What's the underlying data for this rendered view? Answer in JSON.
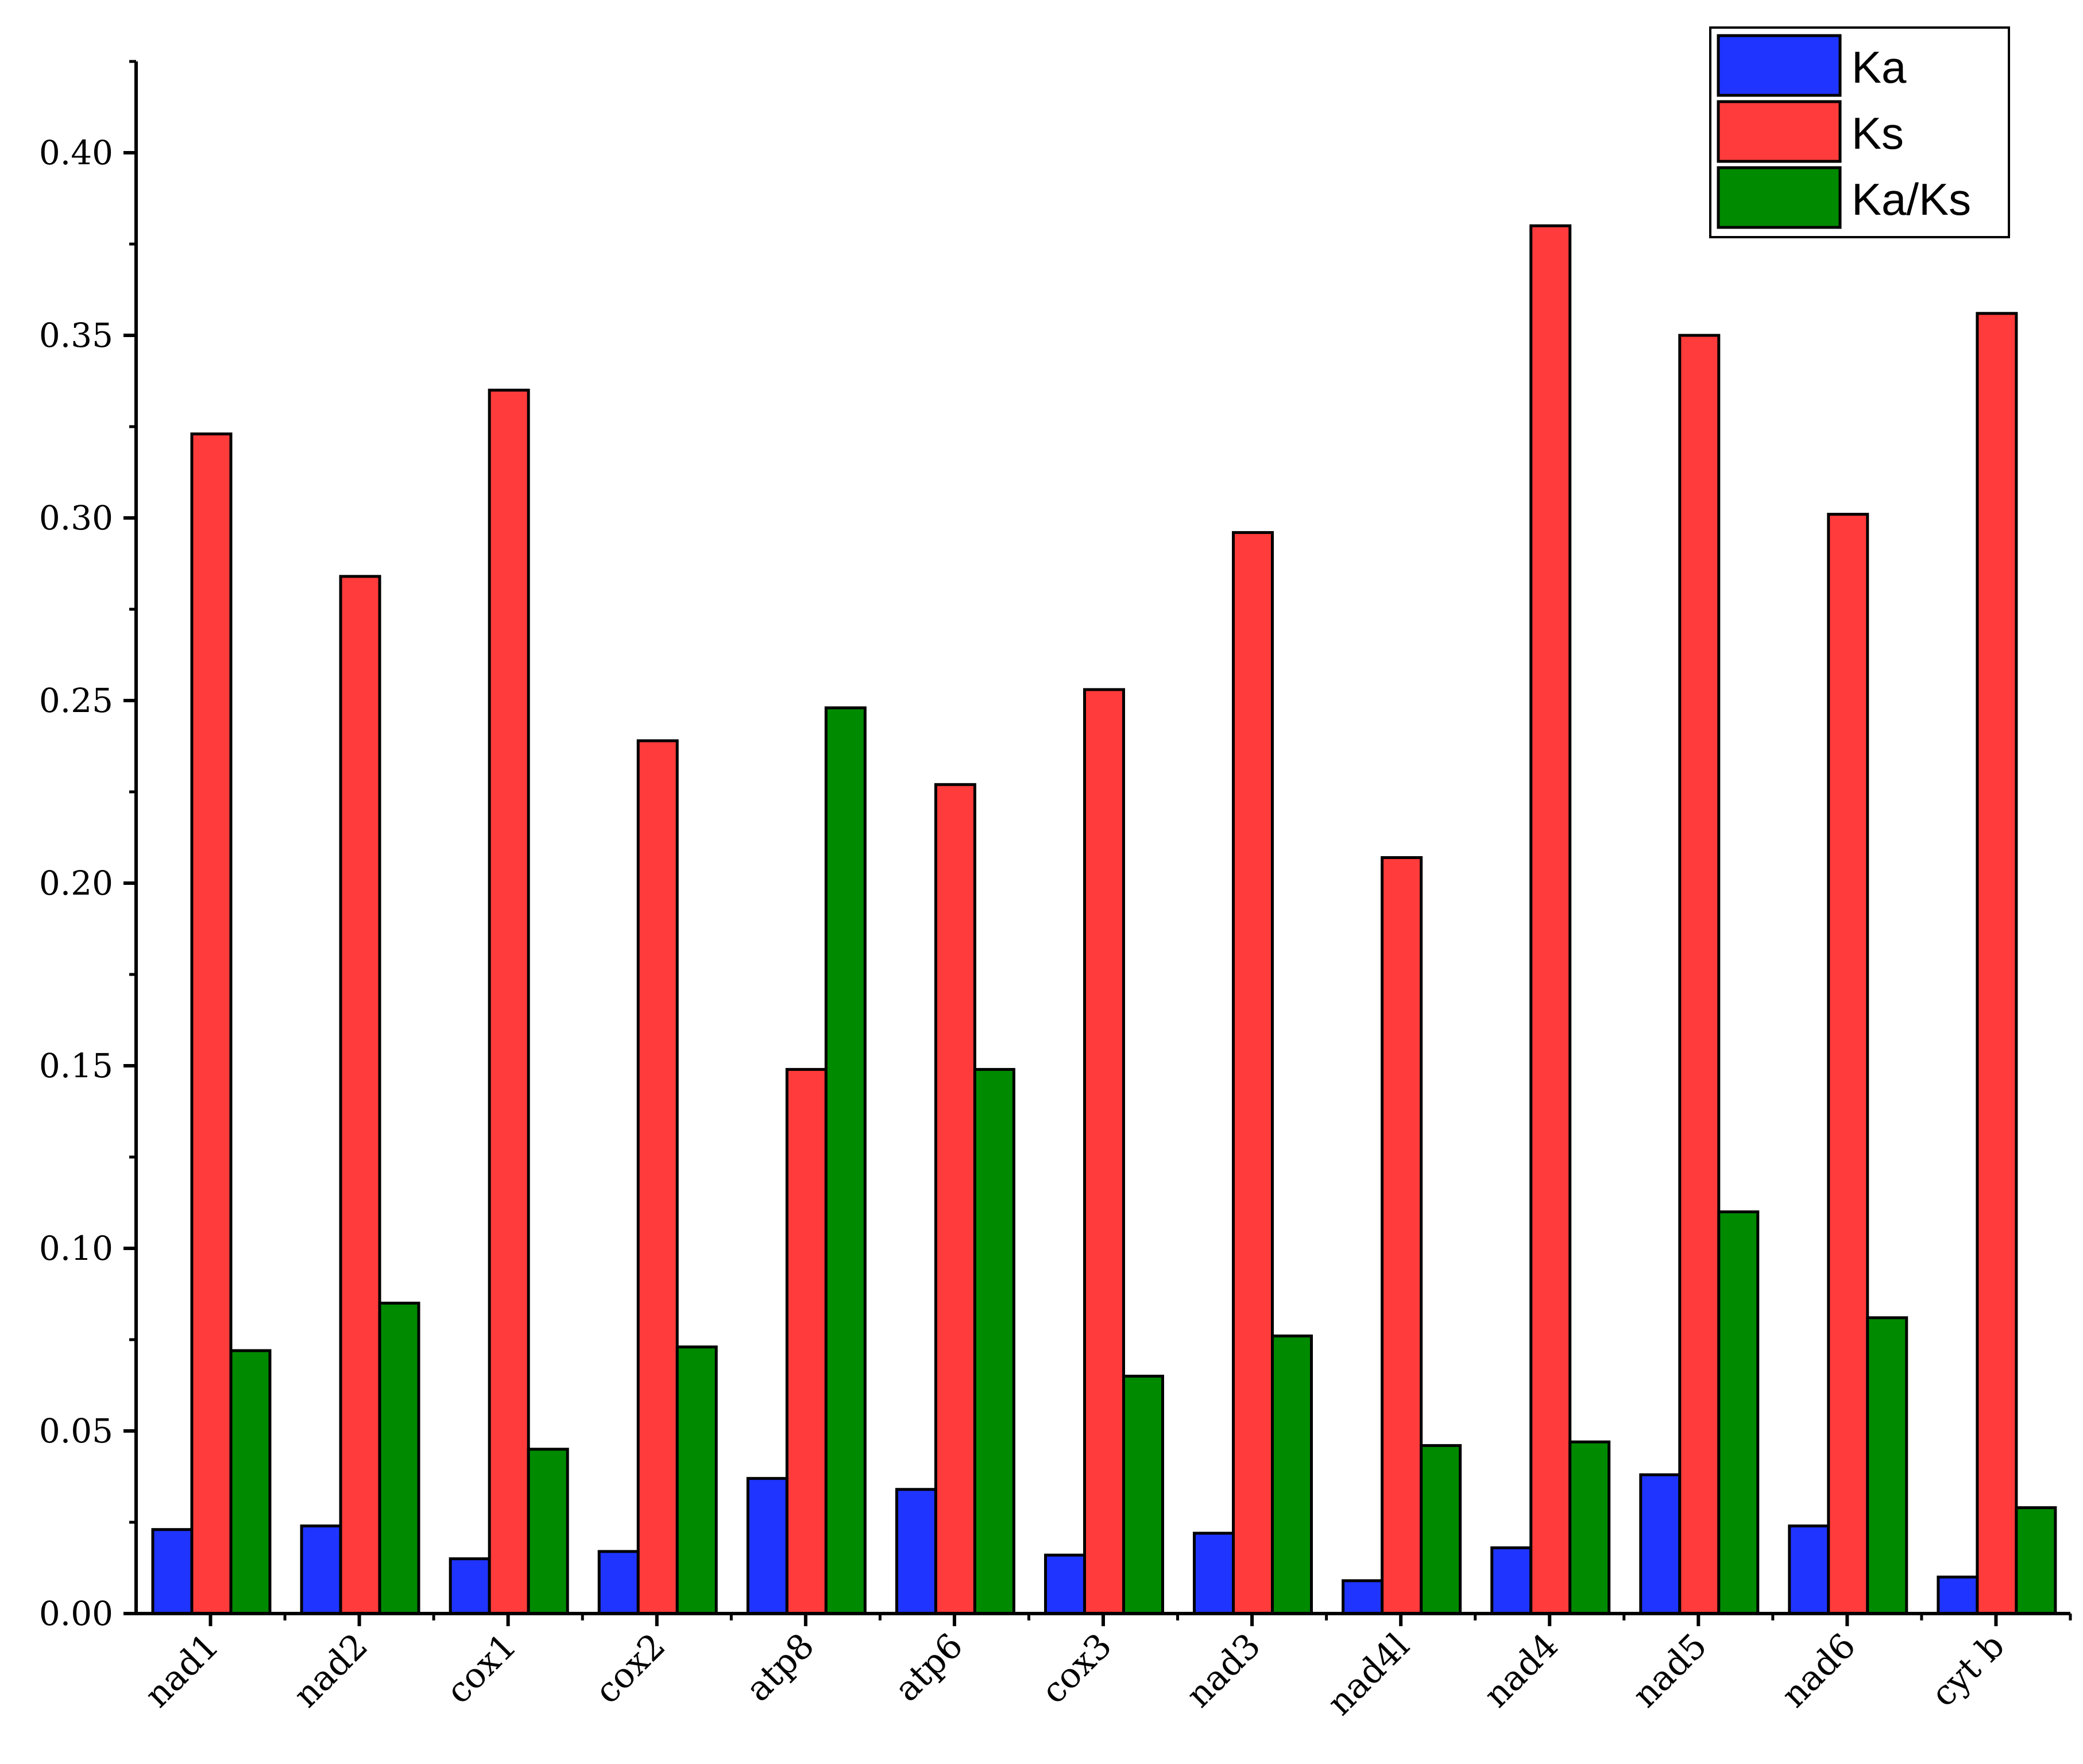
{
  "chart_data": {
    "type": "bar",
    "title": "",
    "xlabel": "",
    "ylabel": "",
    "ylim": [
      0,
      0.425
    ],
    "yticks": [
      "0.00",
      "0.05",
      "0.10",
      "0.15",
      "0.20",
      "0.25",
      "0.30",
      "0.35",
      "0.40"
    ],
    "legend_position": "top-right",
    "grid": false,
    "categories": [
      "nad1",
      "nad2",
      "cox1",
      "cox2",
      "atp8",
      "atp6",
      "cox3",
      "nad3",
      "nad4l",
      "nad4",
      "nad5",
      "nad6",
      "cyt b"
    ],
    "series": [
      {
        "name": "Ka",
        "color": "#1f35ff",
        "values": [
          0.023,
          0.024,
          0.015,
          0.017,
          0.037,
          0.034,
          0.016,
          0.022,
          0.009,
          0.018,
          0.038,
          0.024,
          0.01
        ]
      },
      {
        "name": "Ks",
        "color": "#ff3b3b",
        "values": [
          0.323,
          0.284,
          0.335,
          0.239,
          0.149,
          0.227,
          0.253,
          0.296,
          0.207,
          0.38,
          0.35,
          0.301,
          0.356
        ]
      },
      {
        "name": "Ka/Ks",
        "color": "#008a00",
        "values": [
          0.072,
          0.085,
          0.045,
          0.073,
          0.248,
          0.149,
          0.065,
          0.076,
          0.046,
          0.047,
          0.11,
          0.081,
          0.029
        ]
      }
    ]
  }
}
